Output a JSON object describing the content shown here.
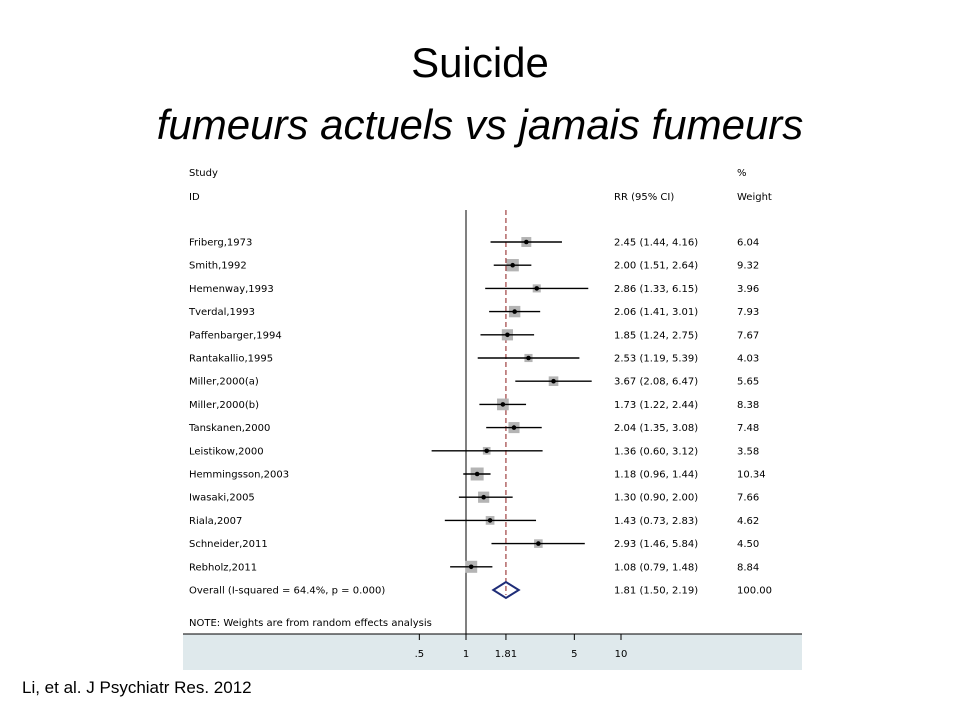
{
  "slide": {
    "title": "Suicide",
    "subtitle": "fumeurs actuels vs jamais fumeurs",
    "citation": "Li, et al. J Psychiatr Res. 2012"
  },
  "colors": {
    "background_panel": "#dfe9ec",
    "plot_area": "#ffffff",
    "pooled_diamond": "#1f2d78",
    "null_line_dashed": "#8b1a1a",
    "weight_box": "#b4b4b4"
  },
  "chart_data": {
    "type": "forest",
    "headers": {
      "study_top": "Study",
      "study_bottom": "ID",
      "rr": "RR (95% CI)",
      "weight_top": "%",
      "weight_bottom": "Weight"
    },
    "studies": [
      {
        "id": "Friberg,1973",
        "rr": 2.45,
        "lo": 1.44,
        "hi": 4.16,
        "rr_text": "2.45 (1.44, 4.16)",
        "weight": "6.04"
      },
      {
        "id": "Smith,1992",
        "rr": 2.0,
        "lo": 1.51,
        "hi": 2.64,
        "rr_text": "2.00 (1.51, 2.64)",
        "weight": "9.32"
      },
      {
        "id": "Hemenway,1993",
        "rr": 2.86,
        "lo": 1.33,
        "hi": 6.15,
        "rr_text": "2.86 (1.33, 6.15)",
        "weight": "3.96"
      },
      {
        "id": "Tverdal,1993",
        "rr": 2.06,
        "lo": 1.41,
        "hi": 3.01,
        "rr_text": "2.06 (1.41, 3.01)",
        "weight": "7.93"
      },
      {
        "id": "Paffenbarger,1994",
        "rr": 1.85,
        "lo": 1.24,
        "hi": 2.75,
        "rr_text": "1.85 (1.24, 2.75)",
        "weight": "7.67"
      },
      {
        "id": "Rantakallio,1995",
        "rr": 2.53,
        "lo": 1.19,
        "hi": 5.39,
        "rr_text": "2.53 (1.19, 5.39)",
        "weight": "4.03"
      },
      {
        "id": "Miller,2000(a)",
        "rr": 3.67,
        "lo": 2.08,
        "hi": 6.47,
        "rr_text": "3.67 (2.08, 6.47)",
        "weight": "5.65"
      },
      {
        "id": "Miller,2000(b)",
        "rr": 1.73,
        "lo": 1.22,
        "hi": 2.44,
        "rr_text": "1.73 (1.22, 2.44)",
        "weight": "8.38"
      },
      {
        "id": "Tanskanen,2000",
        "rr": 2.04,
        "lo": 1.35,
        "hi": 3.08,
        "rr_text": "2.04 (1.35, 3.08)",
        "weight": "7.48"
      },
      {
        "id": "Leistikow,2000",
        "rr": 1.36,
        "lo": 0.6,
        "hi": 3.12,
        "rr_text": "1.36 (0.60, 3.12)",
        "weight": "3.58"
      },
      {
        "id": "Hemmingsson,2003",
        "rr": 1.18,
        "lo": 0.96,
        "hi": 1.44,
        "rr_text": "1.18 (0.96, 1.44)",
        "weight": "10.34"
      },
      {
        "id": "Iwasaki,2005",
        "rr": 1.3,
        "lo": 0.9,
        "hi": 2.0,
        "rr_text": "1.30 (0.90, 2.00)",
        "weight": "7.66"
      },
      {
        "id": "Riala,2007",
        "rr": 1.43,
        "lo": 0.73,
        "hi": 2.83,
        "rr_text": "1.43 (0.73, 2.83)",
        "weight": "4.62"
      },
      {
        "id": "Schneider,2011",
        "rr": 2.93,
        "lo": 1.46,
        "hi": 5.84,
        "rr_text": "2.93 (1.46, 5.84)",
        "weight": "4.50"
      },
      {
        "id": "Rebholz,2011",
        "rr": 1.08,
        "lo": 0.79,
        "hi": 1.48,
        "rr_text": "1.08 (0.79, 1.48)",
        "weight": "8.84"
      }
    ],
    "overall": {
      "label": "Overall  (I-squared = 64.4%, p = 0.000)",
      "rr": 1.81,
      "lo": 1.5,
      "hi": 2.19,
      "rr_text": "1.81 (1.50, 2.19)",
      "weight": "100.00"
    },
    "note": "NOTE: Weights are from random effects analysis",
    "x_scale": "log",
    "xlim": [
      0.365,
      10.0
    ],
    "null_value": 1,
    "pooled_reference": 1.81,
    "x_ticks": [
      0.5,
      1,
      1.81,
      5,
      10
    ],
    "x_tick_labels": [
      ".5",
      "1",
      "1.81",
      "5",
      "10"
    ]
  }
}
